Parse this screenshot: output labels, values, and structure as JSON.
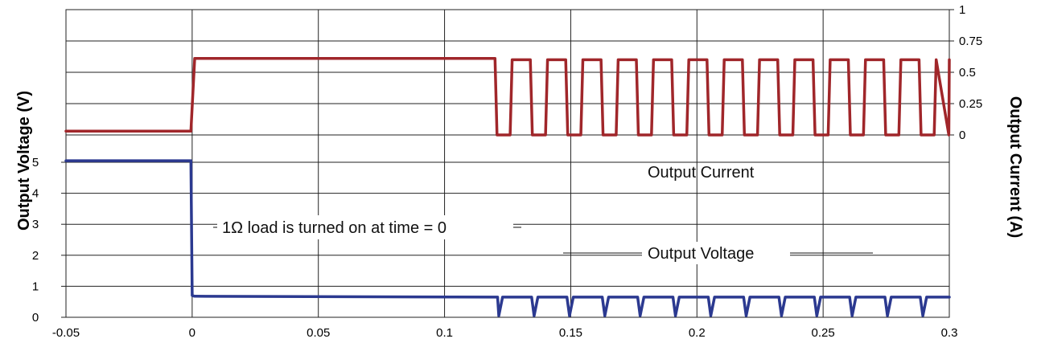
{
  "chart_data": {
    "type": "line",
    "title": "",
    "xlabel": "",
    "ylabel": "Output Voltage (V)",
    "y2label": "Output Current (A)",
    "xlim": [
      -0.05,
      0.3
    ],
    "xticks": [
      "-0.05",
      "0",
      "0.05",
      "0.1",
      "0.15",
      "0.2",
      "0.25",
      "0.3"
    ],
    "ylim": [
      0,
      5
    ],
    "yticks": [
      "0",
      "1",
      "2",
      "3",
      "4",
      "5"
    ],
    "y2lim": [
      0,
      1
    ],
    "y2ticks": [
      "0",
      "0.25",
      "0.5",
      "0.75",
      "1"
    ],
    "grid": true,
    "legend": "none",
    "annotations": {
      "load_note": "1Ω load is turned on at time = 0",
      "current_label": "Output Current",
      "voltage_label": "Output Voltage"
    },
    "series": [
      {
        "name": "Output Voltage",
        "axis": "left",
        "color": "#2B3990",
        "x": [
          -0.05,
          -0.0005,
          0.0,
          0.001,
          0.121,
          0.1215,
          0.123,
          0.1345,
          0.1355,
          0.137,
          0.1485,
          0.1495,
          0.151,
          0.1625,
          0.1635,
          0.165,
          0.1765,
          0.1775,
          0.179,
          0.1905,
          0.1915,
          0.193,
          0.2045,
          0.2055,
          0.207,
          0.2185,
          0.2195,
          0.221,
          0.2325,
          0.2335,
          0.235,
          0.2465,
          0.2475,
          0.249,
          0.2605,
          0.2615,
          0.263,
          0.2745,
          0.2755,
          0.277,
          0.2885,
          0.2895,
          0.291,
          0.3
        ],
        "y": [
          5.05,
          5.05,
          0.7,
          0.68,
          0.65,
          0.05,
          0.65,
          0.65,
          0.05,
          0.65,
          0.65,
          0.05,
          0.65,
          0.65,
          0.05,
          0.65,
          0.65,
          0.05,
          0.65,
          0.65,
          0.05,
          0.65,
          0.65,
          0.05,
          0.65,
          0.65,
          0.05,
          0.65,
          0.65,
          0.05,
          0.65,
          0.65,
          0.05,
          0.65,
          0.65,
          0.05,
          0.65,
          0.65,
          0.05,
          0.65,
          0.65,
          0.05,
          0.65,
          0.65
        ]
      },
      {
        "name": "Output Current",
        "axis": "right",
        "color": "#A0262A",
        "x": [
          -0.05,
          -0.0005,
          0.001,
          0.12,
          0.1208,
          0.126,
          0.1268,
          0.134,
          0.1348,
          0.14,
          0.1408,
          0.148,
          0.1488,
          0.154,
          0.1548,
          0.162,
          0.1628,
          0.168,
          0.1688,
          0.176,
          0.1768,
          0.182,
          0.1828,
          0.19,
          0.1908,
          0.196,
          0.1968,
          0.204,
          0.2048,
          0.21,
          0.2108,
          0.218,
          0.2188,
          0.224,
          0.2248,
          0.232,
          0.2328,
          0.238,
          0.2388,
          0.246,
          0.2468,
          0.252,
          0.2528,
          0.26,
          0.2608,
          0.266,
          0.2668,
          0.274,
          0.2748,
          0.28,
          0.2808,
          0.288,
          0.2888,
          0.294,
          0.2948,
          0.2998,
          0.3
        ],
        "y": [
          0.03,
          0.03,
          0.61,
          0.61,
          0.0,
          0.0,
          0.6,
          0.6,
          0.0,
          0.0,
          0.6,
          0.6,
          0.0,
          0.0,
          0.6,
          0.6,
          0.0,
          0.0,
          0.6,
          0.6,
          0.0,
          0.0,
          0.6,
          0.6,
          0.0,
          0.0,
          0.6,
          0.6,
          0.0,
          0.0,
          0.6,
          0.6,
          0.0,
          0.0,
          0.6,
          0.6,
          0.0,
          0.0,
          0.6,
          0.6,
          0.0,
          0.0,
          0.6,
          0.6,
          0.0,
          0.0,
          0.6,
          0.6,
          0.0,
          0.0,
          0.6,
          0.6,
          0.0,
          0.0,
          0.6,
          0.0,
          0.6
        ]
      }
    ]
  }
}
